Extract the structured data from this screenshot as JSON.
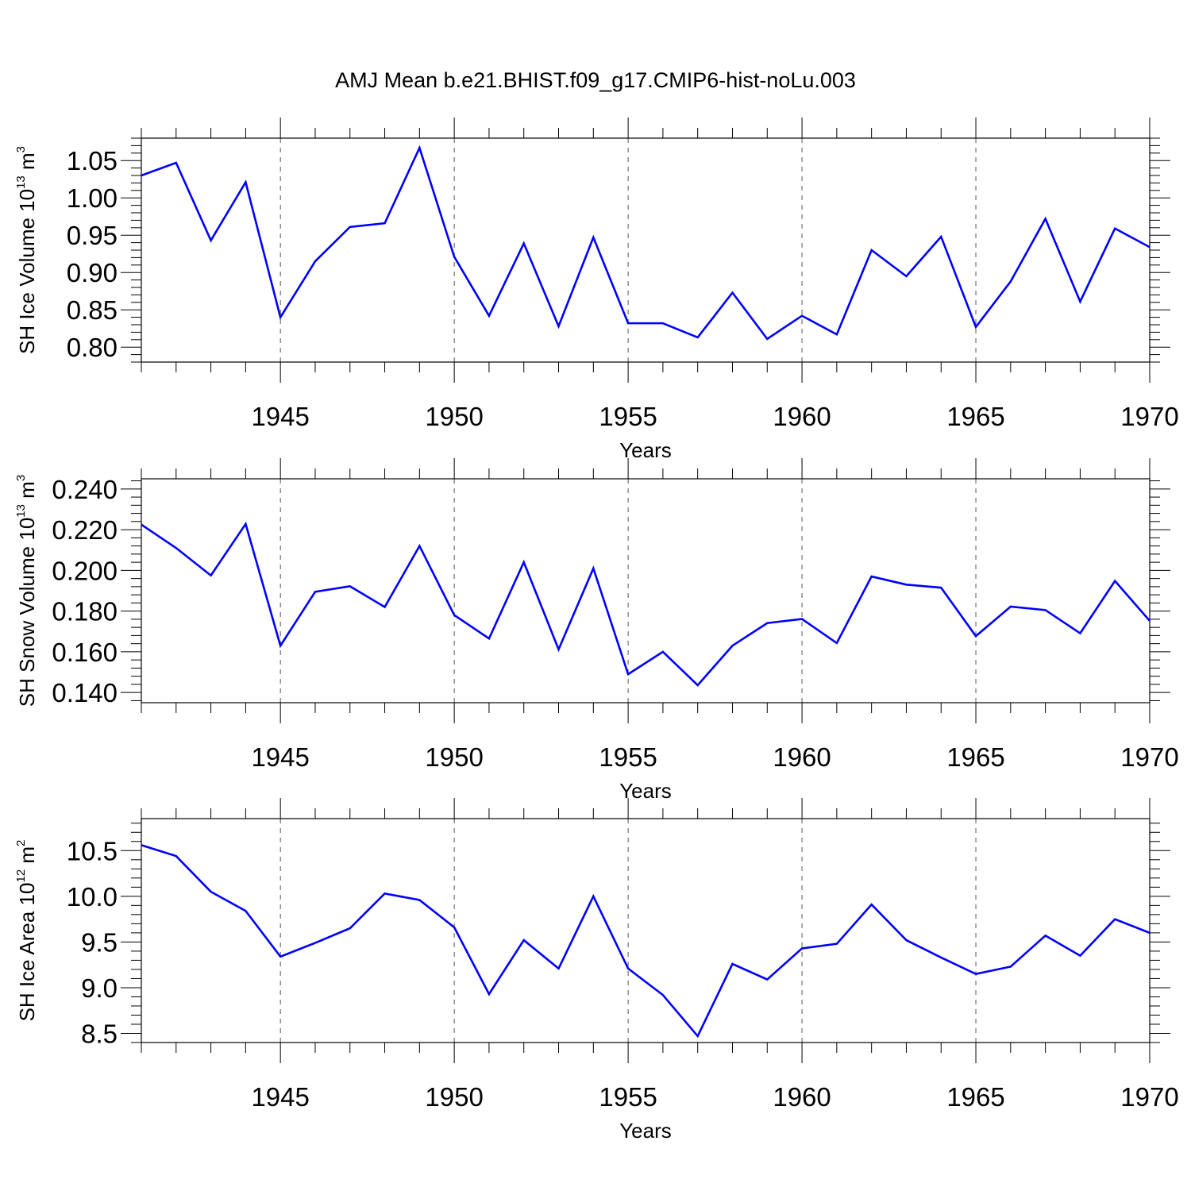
{
  "figure": {
    "title": "AMJ Mean b.e21.BHIST.f09_g17.CMIP6-hist-noLu.003",
    "line_color": "#0000ff"
  },
  "chart_data": [
    {
      "type": "line",
      "xlabel": "Years",
      "ylabel": {
        "text": "SH Ice Volume 10",
        "sup1": "13",
        "unit": " m",
        "sup2": "3"
      },
      "xlim": [
        1941,
        1970
      ],
      "ylim": [
        0.78,
        1.08
      ],
      "xticks": [
        1945,
        1950,
        1955,
        1960,
        1965,
        1970
      ],
      "xtick_labels": [
        "1945",
        "1950",
        "1955",
        "1960",
        "1965",
        "1970"
      ],
      "yticks": [
        0.8,
        0.85,
        0.9,
        0.95,
        1.0,
        1.05
      ],
      "ytick_labels": [
        "0.80",
        "0.85",
        "0.90",
        "0.95",
        "1.00",
        "1.05"
      ],
      "grid": "dashed vertical at major x ticks",
      "x": [
        1941,
        1942,
        1943,
        1944,
        1945,
        1946,
        1947,
        1948,
        1949,
        1950,
        1951,
        1952,
        1953,
        1954,
        1955,
        1956,
        1957,
        1958,
        1959,
        1960,
        1961,
        1962,
        1963,
        1964,
        1965,
        1966,
        1967,
        1968,
        1969,
        1970
      ],
      "series": [
        {
          "values": [
            1.03,
            1.047,
            0.943,
            1.021,
            0.84,
            0.915,
            0.961,
            0.966,
            1.067,
            0.921,
            0.842,
            0.939,
            0.828,
            0.947,
            0.832,
            0.832,
            0.813,
            0.873,
            0.811,
            0.842,
            0.817,
            0.93,
            0.895,
            0.948,
            0.827,
            0.888,
            0.972,
            0.861,
            0.959,
            0.934
          ]
        }
      ]
    },
    {
      "type": "line",
      "xlabel": "Years",
      "ylabel": {
        "text": "SH Snow Volume 10",
        "sup1": "13",
        "unit": " m",
        "sup2": "3"
      },
      "xlim": [
        1941,
        1970
      ],
      "ylim": [
        0.135,
        0.245
      ],
      "xticks": [
        1945,
        1950,
        1955,
        1960,
        1965,
        1970
      ],
      "xtick_labels": [
        "1945",
        "1950",
        "1955",
        "1960",
        "1965",
        "1970"
      ],
      "yticks": [
        0.14,
        0.16,
        0.18,
        0.2,
        0.22,
        0.24
      ],
      "ytick_labels": [
        "0.140",
        "0.160",
        "0.180",
        "0.200",
        "0.220",
        "0.240"
      ],
      "grid": "dashed vertical at major x ticks",
      "x": [
        1941,
        1942,
        1943,
        1944,
        1945,
        1946,
        1947,
        1948,
        1949,
        1950,
        1951,
        1952,
        1953,
        1954,
        1955,
        1956,
        1957,
        1958,
        1959,
        1960,
        1961,
        1962,
        1963,
        1964,
        1965,
        1966,
        1967,
        1968,
        1969,
        1970
      ],
      "series": [
        {
          "values": [
            0.2225,
            0.211,
            0.1975,
            0.2228,
            0.163,
            0.1895,
            0.1922,
            0.182,
            0.212,
            0.178,
            0.1665,
            0.204,
            0.1612,
            0.201,
            0.149,
            0.16,
            0.1436,
            0.163,
            0.1741,
            0.1761,
            0.1643,
            0.197,
            0.193,
            0.1915,
            0.1677,
            0.1822,
            0.1805,
            0.1691,
            0.1948,
            0.1752
          ]
        }
      ]
    },
    {
      "type": "line",
      "xlabel": "Years",
      "ylabel": {
        "text": "SH Ice Area 10",
        "sup1": "12",
        "unit": " m",
        "sup2": "2"
      },
      "xlim": [
        1941,
        1970
      ],
      "ylim": [
        8.4,
        10.85
      ],
      "xticks": [
        1945,
        1950,
        1955,
        1960,
        1965,
        1970
      ],
      "xtick_labels": [
        "1945",
        "1950",
        "1955",
        "1960",
        "1965",
        "1970"
      ],
      "yticks": [
        8.5,
        9.0,
        9.5,
        10.0,
        10.5
      ],
      "ytick_labels": [
        "8.5",
        "9.0",
        "9.5",
        "10.0",
        "10.5"
      ],
      "grid": "dashed vertical at major x ticks",
      "x": [
        1941,
        1942,
        1943,
        1944,
        1945,
        1946,
        1947,
        1948,
        1949,
        1950,
        1951,
        1952,
        1953,
        1954,
        1955,
        1956,
        1957,
        1958,
        1959,
        1960,
        1961,
        1962,
        1963,
        1964,
        1965,
        1966,
        1967,
        1968,
        1969,
        1970
      ],
      "series": [
        {
          "values": [
            10.56,
            10.44,
            10.05,
            9.84,
            9.34,
            9.49,
            9.65,
            10.03,
            9.96,
            9.66,
            8.93,
            9.52,
            9.21,
            10.0,
            9.21,
            8.92,
            8.47,
            9.26,
            9.09,
            9.43,
            9.48,
            9.91,
            9.52,
            9.33,
            9.15,
            9.23,
            9.57,
            9.35,
            9.75,
            9.6
          ]
        }
      ]
    }
  ]
}
